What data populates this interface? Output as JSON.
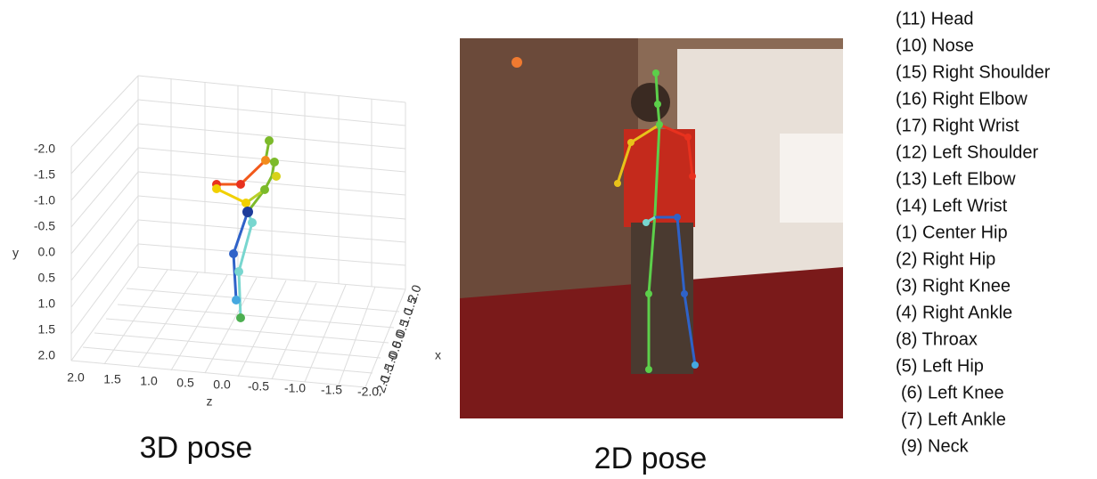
{
  "panels": [
    {
      "caption": "3D pose",
      "y_label": "y",
      "z_label": "z",
      "x_label": "x",
      "y_ticks": [
        "-2.0",
        "-1.5",
        "-1.0",
        "-0.5",
        "0.0",
        "0.5",
        "1.0",
        "1.5",
        "2.0"
      ],
      "z_ticks": [
        "2.0",
        "1.5",
        "1.0",
        "0.5",
        "0.0",
        "-0.5",
        "-1.0",
        "-1.5",
        "-2.0"
      ],
      "x_ticks": [
        "2.0",
        "1.5",
        "1.0",
        "0.5",
        "0.0",
        "-0.5",
        "-1.0",
        "-1.5",
        "-2.0"
      ]
    },
    {
      "caption": "2D pose"
    }
  ],
  "joints": [
    "(11) Head",
    "(10) Nose",
    "(15) Right Shoulder",
    "(16) Right Elbow",
    "(17) Right Wrist",
    "(12) Left Shoulder",
    "(13) Left Elbow",
    "(14) Left Wrist",
    "(1) Center Hip",
    "(2) Right Hip",
    "(3) Right Knee",
    "(4) Right Ankle",
    "(8) Throax",
    "(5) Left Hip",
    "(6) Left Knee",
    "(7) Left Ankle",
    "(9) Neck"
  ]
}
